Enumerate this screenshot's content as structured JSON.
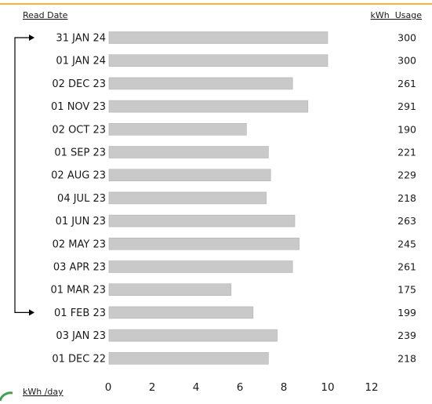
{
  "colors": {
    "accent": "#f3b33d",
    "bar": "#c9c9c9",
    "bar_edge": "#b5b5b5",
    "text": "#1a1a1a",
    "axis": "#000000",
    "status_dot": "#3aa24a"
  },
  "chart_data": {
    "type": "bar",
    "orientation": "horizontal",
    "header_left": "Read Date",
    "header_right": "kWh  Usage",
    "xlabel": "kWh /day",
    "xlim": [
      0,
      12
    ],
    "xticks": [
      "0",
      "2",
      "4",
      "6",
      "8",
      "10",
      "12"
    ],
    "categories": [
      "31 JAN 24",
      "01 JAN 24",
      "02 DEC 23",
      "01 NOV 23",
      "02 OCT 23",
      "01 SEP 23",
      "02 AUG 23",
      "04 JUL 23",
      "01 JUN 23",
      "02 MAY 23",
      "03 APR 23",
      "01 MAR 23",
      "01 FEB 23",
      "03 JAN 23",
      "01 DEC 22"
    ],
    "values": [
      10.0,
      10.0,
      8.4,
      9.1,
      6.3,
      7.3,
      7.4,
      7.2,
      8.5,
      8.7,
      8.4,
      5.6,
      6.6,
      7.7,
      7.3
    ],
    "usage": [
      "300",
      "300",
      "261",
      "291",
      "190",
      "221",
      "229",
      "218",
      "263",
      "245",
      "261",
      "175",
      "199",
      "239",
      "218"
    ],
    "bracket": {
      "from": "31 JAN 24",
      "to": "01 FEB 23"
    },
    "grid": false
  }
}
